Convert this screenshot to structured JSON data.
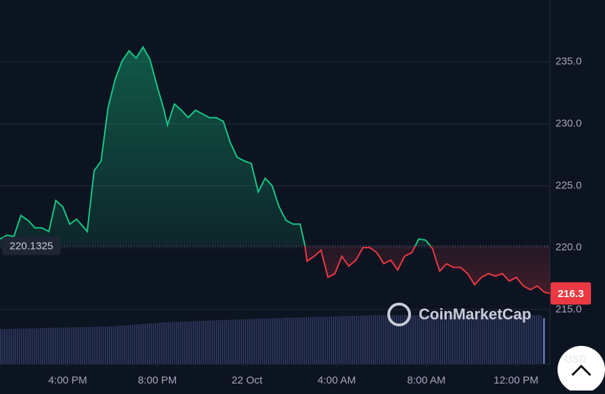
{
  "chart_data": {
    "type": "line",
    "x": [
      12.98,
      13.29,
      13.6,
      13.91,
      14.23,
      14.54,
      14.85,
      15.16,
      15.47,
      15.78,
      16.09,
      16.4,
      16.87,
      17.18,
      17.49,
      17.8,
      18.12,
      18.43,
      18.74,
      19.05,
      19.36,
      19.67,
      19.98,
      20.3,
      20.45,
      20.76,
      21.07,
      21.38,
      21.7,
      22.01,
      22.32,
      22.63,
      22.94,
      23.25,
      23.56,
      23.88,
      24.19,
      24.5,
      24.81,
      25.12,
      25.43,
      25.74,
      26.05,
      26.37,
      26.58,
      26.68,
      26.99,
      27.3,
      27.61,
      27.92,
      28.23,
      28.54,
      28.86,
      29.17,
      29.48,
      29.79,
      30.1,
      30.41,
      30.72,
      31.03,
      31.35,
      31.66,
      31.97,
      32.28,
      32.59,
      32.9,
      33.21,
      33.52,
      33.84,
      34.15,
      34.46,
      34.77,
      35.08,
      35.39,
      35.7,
      36.01,
      36.33,
      36.64,
      36.95,
      37.26,
      37.51
    ],
    "values": [
      220.7,
      221.0,
      220.9,
      222.6,
      222.2,
      221.6,
      221.6,
      221.3,
      223.8,
      223.3,
      221.9,
      222.3,
      221.3,
      226.2,
      227.0,
      231.3,
      233.6,
      235.1,
      235.9,
      235.3,
      236.2,
      235.2,
      233.1,
      231.1,
      229.9,
      231.6,
      231.1,
      230.5,
      231.1,
      230.8,
      230.5,
      230.5,
      230.2,
      228.5,
      227.3,
      227.0,
      226.8,
      224.5,
      225.6,
      225.0,
      223.3,
      222.2,
      221.9,
      221.9,
      220.2,
      218.9,
      219.3,
      219.8,
      217.6,
      217.9,
      219.3,
      218.5,
      219.0,
      220.0,
      220.0,
      219.6,
      218.7,
      219.0,
      218.2,
      219.3,
      219.6,
      220.7,
      220.6,
      219.9,
      218.1,
      218.7,
      218.4,
      218.4,
      217.9,
      217.0,
      217.6,
      217.9,
      217.7,
      217.9,
      217.3,
      217.6,
      216.9,
      216.6,
      216.9,
      216.4,
      216.3
    ],
    "baseline": 220.1325,
    "up_color": "#16c784",
    "down_color": "#ea3943",
    "xlim": [
      12.98,
      37.51
    ],
    "xticks": [
      {
        "value": 16,
        "label": "4:00 PM"
      },
      {
        "value": 20,
        "label": "8:00 PM"
      },
      {
        "value": 24,
        "label": "22 Oct"
      },
      {
        "value": 28,
        "label": "4:00 AM"
      },
      {
        "value": 32,
        "label": "8:00 AM"
      },
      {
        "value": 36,
        "label": "12:00 PM"
      }
    ],
    "ylim": [
      210.6,
      240
    ],
    "yticks": [
      {
        "value": 215,
        "label": "215.0"
      },
      {
        "value": 220,
        "label": "220.0"
      },
      {
        "value": 225,
        "label": "225.0"
      },
      {
        "value": 230,
        "label": "230.0"
      },
      {
        "value": 235,
        "label": "235.0"
      }
    ],
    "grid": true,
    "watermark": "CoinMarketCap",
    "currency": "USD"
  }
}
